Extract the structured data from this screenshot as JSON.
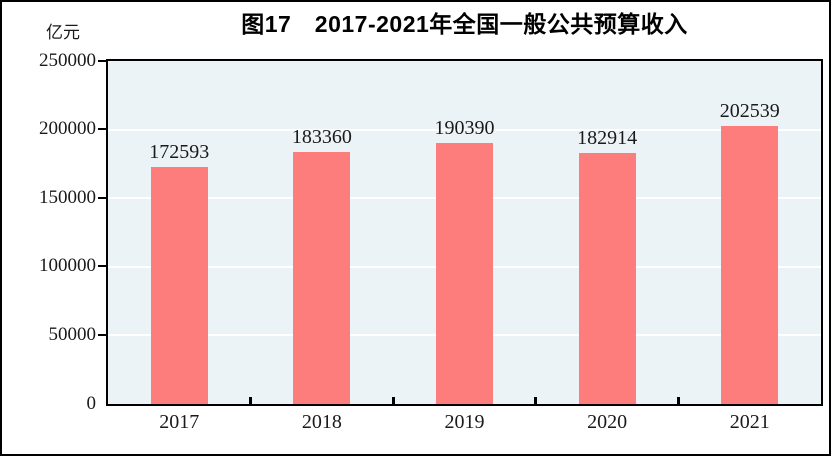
{
  "figure": {
    "title": "图17　2017-2021年全国一般公共预算收入",
    "unit_label": "亿元"
  },
  "colors": {
    "bar": "#FD7C7C",
    "plot_background": "#ECF3F7",
    "gridline": "#FFFFFF",
    "axis": "#000000",
    "text": "#1A1A1A"
  },
  "chart_data": {
    "type": "bar",
    "title": "图17　2017-2021年全国一般公共预算收入",
    "categories": [
      "2017",
      "2018",
      "2019",
      "2020",
      "2021"
    ],
    "values": [
      172593,
      183360,
      190390,
      182914,
      202539
    ],
    "value_labels": [
      "172593",
      "183360",
      "190390",
      "182914",
      "202539"
    ],
    "xlabel": "",
    "ylabel": "亿元",
    "ylim": [
      0,
      250000
    ],
    "yticks": [
      0,
      50000,
      100000,
      150000,
      200000,
      250000
    ],
    "ytick_labels": [
      "0",
      "50000",
      "100000",
      "150000",
      "200000",
      "250000"
    ],
    "grid": true,
    "gridline_values": [
      50000,
      100000,
      150000,
      200000
    ],
    "legend": false,
    "bar_labels_position": "above"
  }
}
